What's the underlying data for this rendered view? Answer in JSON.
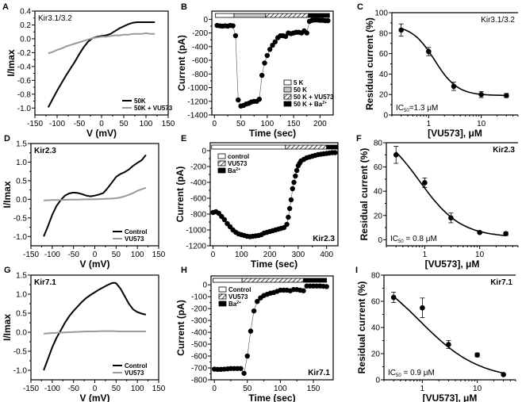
{
  "chart_data": [
    {
      "id": "A",
      "type": "line",
      "panel_label": "A",
      "title": "",
      "annotation": "Kir3.1/3.2",
      "annotation_bold": false,
      "xlabel": "V (mV)",
      "ylabel": "I/Imax",
      "xlim": [
        -150,
        150
      ],
      "ylim": [
        -1.1,
        0.4
      ],
      "xticks": [
        -150,
        -100,
        -50,
        0,
        50,
        100,
        150
      ],
      "yticks": [
        -1.0,
        -0.8,
        -0.6,
        -0.4,
        -0.2,
        0.0,
        0.2,
        0.4
      ],
      "ytick_labels": [
        "-1.0",
        "-0.8",
        "-0.6",
        "-0.4",
        "-0.2",
        "0.0",
        "0.2",
        "0.4"
      ],
      "legend": "bottom-right",
      "series": [
        {
          "name": "50K",
          "color": "#000000",
          "x": [
            -120,
            -110,
            -100,
            -90,
            -80,
            -70,
            -60,
            -50,
            -40,
            -30,
            -20,
            -10,
            0,
            10,
            20,
            30,
            40,
            50,
            60,
            70,
            80,
            90,
            100,
            110,
            120
          ],
          "y": [
            -0.99,
            -0.87,
            -0.75,
            -0.64,
            -0.53,
            -0.43,
            -0.33,
            -0.22,
            -0.12,
            -0.04,
            0.01,
            0.03,
            0.04,
            0.05,
            0.07,
            0.11,
            0.15,
            0.18,
            0.21,
            0.23,
            0.24,
            0.24,
            0.24,
            0.24,
            0.24
          ]
        },
        {
          "name": "50K + VU573",
          "color": "#999999",
          "x": [
            -120,
            -110,
            -100,
            -90,
            -80,
            -70,
            -60,
            -50,
            -40,
            -30,
            -20,
            -10,
            0,
            10,
            20,
            30,
            40,
            50,
            60,
            70,
            80,
            90,
            100,
            110,
            120
          ],
          "y": [
            -0.21,
            -0.19,
            -0.16,
            -0.14,
            -0.11,
            -0.09,
            -0.07,
            -0.05,
            -0.03,
            -0.01,
            0.01,
            0.02,
            0.03,
            0.03,
            0.04,
            0.05,
            0.05,
            0.06,
            0.06,
            0.07,
            0.07,
            0.07,
            0.08,
            0.07,
            0.07
          ]
        }
      ]
    },
    {
      "id": "B",
      "type": "scatter",
      "panel_label": "B",
      "title": "",
      "annotation": "",
      "xlabel": "Time (sec)",
      "ylabel": "Current (pA)",
      "xlim": [
        -5,
        225
      ],
      "ylim": [
        -1400,
        120
      ],
      "xticks": [
        0,
        50,
        100,
        150,
        200
      ],
      "yticks": [
        -1400,
        -1200,
        -1000,
        -800,
        -600,
        -400,
        -200,
        0
      ],
      "ytick_labels": [
        "-1400",
        "-1200",
        "-1000",
        "-800",
        "-600",
        "-400",
        "-200",
        "0"
      ],
      "connected": true,
      "bars": [
        {
          "label": "5 K",
          "fill": "white",
          "start": 2,
          "end": 37
        },
        {
          "label": "50 K",
          "fill": "gray",
          "start": 37,
          "end": 97
        },
        {
          "label": "50 K + VU573",
          "fill": "hatch",
          "start": 97,
          "end": 178
        },
        {
          "label": "50 K + Ba2+",
          "fill": "black",
          "start": 178,
          "end": 218
        }
      ],
      "bar_legend": "bottom-right",
      "series": [
        {
          "name": "current",
          "color": "#000000",
          "x": [
            5,
            10,
            15,
            20,
            25,
            30,
            35,
            40,
            45,
            50,
            55,
            60,
            65,
            70,
            75,
            80,
            85,
            90,
            95,
            100,
            105,
            110,
            115,
            120,
            125,
            130,
            135,
            140,
            145,
            150,
            155,
            160,
            165,
            170,
            175,
            180,
            185,
            190,
            195,
            200,
            205,
            210,
            215
          ],
          "y": [
            -90,
            -95,
            -100,
            -95,
            -100,
            -90,
            -95,
            -240,
            -1180,
            -1270,
            -1260,
            -1240,
            -1230,
            -1210,
            -1200,
            -1200,
            -1170,
            -820,
            -640,
            -530,
            -440,
            -380,
            -330,
            -270,
            -240,
            -240,
            -250,
            -200,
            -210,
            -200,
            -190,
            -190,
            -200,
            -170,
            -200,
            -30,
            -15,
            -10,
            -10,
            -15,
            -15,
            -20,
            -20
          ]
        }
      ]
    },
    {
      "id": "C",
      "type": "scatter",
      "panel_label": "C",
      "title": "",
      "annotation": "Kir3.1/3.2",
      "annotation_bold": false,
      "ic50_text": "IC50=1.3 μM",
      "xlabel": "[VU573], μM",
      "ylabel": "Residual current (%)",
      "xscale": "log",
      "xlim": [
        0.2,
        50
      ],
      "ylim": [
        0,
        100
      ],
      "xticks": [
        1,
        10
      ],
      "xtick_labels": [
        "1",
        "10"
      ],
      "yticks": [
        0,
        20,
        40,
        60,
        80,
        100
      ],
      "ytick_labels": [
        "0",
        "20",
        "40",
        "60",
        "80",
        "100"
      ],
      "fit": {
        "top": 88,
        "bottom": 19,
        "ic50": 1.3,
        "hill": 2.0,
        "xrange": [
          0.3,
          30
        ]
      },
      "series": [
        {
          "name": "data",
          "color": "#000000",
          "x": [
            0.3,
            1,
            3,
            10,
            30
          ],
          "y": [
            83,
            62,
            28,
            20,
            19
          ],
          "err": [
            6,
            4,
            4,
            3,
            2
          ]
        }
      ]
    },
    {
      "id": "D",
      "type": "line",
      "panel_label": "D",
      "title": "",
      "annotation": "Kir2.3",
      "annotation_bold": true,
      "xlabel": "V (mV)",
      "ylabel": "I/Imax",
      "xlim": [
        -150,
        150
      ],
      "ylim": [
        -1.25,
        1.5
      ],
      "xticks": [
        -150,
        -100,
        -50,
        0,
        50,
        100,
        150
      ],
      "yticks": [
        -1.0,
        -0.5,
        0.0,
        0.5,
        1.0,
        1.5
      ],
      "ytick_labels": [
        "-1.0",
        "-0.5",
        "0.0",
        "0.5",
        "1.0",
        "1.5"
      ],
      "legend": "bottom-right",
      "series": [
        {
          "name": "Control",
          "color": "#000000",
          "x": [
            -120,
            -110,
            -100,
            -90,
            -80,
            -70,
            -60,
            -50,
            -40,
            -30,
            -20,
            -10,
            0,
            10,
            20,
            30,
            40,
            50,
            60,
            70,
            80,
            90,
            100,
            110,
            120
          ],
          "y": [
            -1.0,
            -0.72,
            -0.42,
            -0.18,
            -0.02,
            0.1,
            0.16,
            0.18,
            0.17,
            0.14,
            0.1,
            0.08,
            0.1,
            0.13,
            0.17,
            0.3,
            0.45,
            0.6,
            0.68,
            0.73,
            0.8,
            0.9,
            0.98,
            1.05,
            1.19
          ]
        },
        {
          "name": "VU573",
          "color": "#999999",
          "x": [
            -120,
            -100,
            -80,
            -60,
            -40,
            -20,
            0,
            20,
            40,
            50,
            60,
            70,
            80,
            90,
            100,
            110,
            120
          ],
          "y": [
            -0.03,
            -0.02,
            -0.02,
            -0.01,
            -0.01,
            0.0,
            0.0,
            0.01,
            0.02,
            0.03,
            0.05,
            0.08,
            0.12,
            0.17,
            0.23,
            0.27,
            0.31
          ]
        }
      ]
    },
    {
      "id": "E",
      "type": "scatter",
      "panel_label": "E",
      "title": "",
      "annotation": "Kir2.3",
      "annotation_bold": true,
      "xlabel": "Time (sec)",
      "ylabel": "Current (pA)",
      "xlim": [
        -10,
        440
      ],
      "ylim": [
        -1200,
        100
      ],
      "xticks": [
        0,
        100,
        200,
        300,
        400
      ],
      "yticks": [
        -1200,
        -1000,
        -800,
        -600,
        -400,
        -200,
        0
      ],
      "ytick_labels": [
        "-1200",
        "-1000",
        "-800",
        "-600",
        "-400",
        "-200",
        "0"
      ],
      "connected": true,
      "bars": [
        {
          "label": "control",
          "fill": "white",
          "start": -5,
          "end": 255
        },
        {
          "label": "VU573",
          "fill": "hatch",
          "start": 255,
          "end": 400
        },
        {
          "label": "Ba2+",
          "fill": "black",
          "start": 400,
          "end": 438
        }
      ],
      "bar_legend": "top-left",
      "series": [
        {
          "name": "current",
          "color": "#000000",
          "x": [
            0,
            10,
            20,
            30,
            40,
            50,
            60,
            70,
            80,
            90,
            100,
            110,
            120,
            130,
            140,
            150,
            160,
            170,
            180,
            190,
            200,
            210,
            220,
            230,
            240,
            250,
            260,
            265,
            270,
            275,
            280,
            285,
            290,
            295,
            300,
            305,
            310,
            320,
            330,
            340,
            350,
            360,
            370,
            380,
            390,
            400,
            410,
            420,
            430
          ],
          "y": [
            -780,
            -770,
            -790,
            -830,
            -870,
            -920,
            -960,
            -1000,
            -1030,
            -1050,
            -1060,
            -1070,
            -1080,
            -1085,
            -1080,
            -1075,
            -1070,
            -1060,
            -1040,
            -1030,
            -1020,
            -1010,
            -1000,
            -990,
            -980,
            -970,
            -930,
            -840,
            -730,
            -620,
            -480,
            -400,
            -320,
            -250,
            -190,
            -160,
            -130,
            -110,
            -90,
            -80,
            -70,
            -60,
            -50,
            -45,
            -40,
            -35,
            -30,
            -25,
            -25
          ]
        }
      ]
    },
    {
      "id": "F",
      "type": "scatter",
      "panel_label": "F",
      "title": "",
      "annotation": "Kir2.3",
      "annotation_bold": true,
      "ic50_text": "IC50 = 0.8 μM",
      "xlabel": "[VU573], μM",
      "ylabel": "Residual current (%)",
      "xscale": "log",
      "xlim": [
        0.2,
        50
      ],
      "ylim": [
        -5,
        80
      ],
      "xticks": [
        1,
        10
      ],
      "xtick_labels": [
        "1",
        "10"
      ],
      "yticks": [
        0,
        20,
        40,
        60,
        80
      ],
      "ytick_labels": [
        "0",
        "20",
        "40",
        "60",
        "80"
      ],
      "fit": {
        "top": 95,
        "bottom": 2,
        "ic50": 0.8,
        "hill": 1.15,
        "xrange": [
          0.3,
          30
        ]
      },
      "series": [
        {
          "name": "data",
          "color": "#000000",
          "x": [
            0.3,
            1,
            3,
            10,
            30
          ],
          "y": [
            70,
            47,
            18,
            6,
            5
          ],
          "err": [
            7,
            4,
            4,
            1,
            1.5
          ]
        }
      ]
    },
    {
      "id": "G",
      "type": "line",
      "panel_label": "G",
      "title": "",
      "annotation": "Kir7.1",
      "annotation_bold": true,
      "xlabel": "V (mV)",
      "ylabel": "I/Imax",
      "xlim": [
        -150,
        150
      ],
      "ylim": [
        -1.25,
        1.5
      ],
      "xticks": [
        -150,
        -100,
        -50,
        0,
        50,
        100,
        150
      ],
      "yticks": [
        -1.0,
        -0.5,
        0.0,
        0.5,
        1.0,
        1.5
      ],
      "ytick_labels": [
        "-1.0",
        "-0.5",
        "0.0",
        "0.5",
        "1.0",
        "1.5"
      ],
      "legend": "bottom-right",
      "series": [
        {
          "name": "Control",
          "color": "#000000",
          "x": [
            -120,
            -110,
            -100,
            -90,
            -80,
            -70,
            -60,
            -50,
            -40,
            -30,
            -20,
            -10,
            0,
            10,
            20,
            30,
            40,
            45,
            50,
            60,
            70,
            80,
            90,
            100,
            110,
            120
          ],
          "y": [
            -1.0,
            -0.7,
            -0.4,
            -0.15,
            0.05,
            0.25,
            0.42,
            0.56,
            0.68,
            0.8,
            0.9,
            0.98,
            1.05,
            1.12,
            1.18,
            1.24,
            1.29,
            1.3,
            1.29,
            1.15,
            0.95,
            0.75,
            0.6,
            0.53,
            0.49,
            0.46
          ]
        },
        {
          "name": "VU573",
          "color": "#999999",
          "x": [
            -120,
            -100,
            -80,
            -60,
            -40,
            -20,
            0,
            20,
            40,
            60,
            80,
            100,
            120
          ],
          "y": [
            -0.04,
            -0.02,
            -0.01,
            0.0,
            0.01,
            0.02,
            0.02,
            0.03,
            0.03,
            0.02,
            0.02,
            0.02,
            0.02
          ]
        }
      ]
    },
    {
      "id": "H",
      "type": "scatter",
      "panel_label": "H",
      "title": "",
      "annotation": "Kir7.1",
      "annotation_bold": true,
      "xlabel": "Time (sec)",
      "ylabel": "Current (pA)",
      "xlim": [
        -5,
        180
      ],
      "ylim": [
        -800,
        75
      ],
      "xticks": [
        0,
        50,
        100,
        150
      ],
      "yticks": [
        -800,
        -700,
        -600,
        -500,
        -400,
        -300,
        -200,
        -100,
        0
      ],
      "ytick_labels": [
        "-800",
        "-700",
        "-600",
        "-500",
        "-400",
        "-300",
        "-200",
        "-100",
        "0"
      ],
      "connected": true,
      "bars": [
        {
          "label": "Control",
          "fill": "white",
          "start": -2,
          "end": 42
        },
        {
          "label": "VU573",
          "fill": "hatch",
          "start": 42,
          "end": 135
        },
        {
          "label": "Ba2+",
          "fill": "black",
          "start": 135,
          "end": 170
        }
      ],
      "bar_legend": "top-left",
      "series": [
        {
          "name": "current",
          "color": "#000000",
          "x": [
            0,
            5,
            10,
            15,
            20,
            25,
            30,
            35,
            40,
            45,
            50,
            55,
            60,
            65,
            70,
            75,
            80,
            85,
            90,
            95,
            100,
            105,
            110,
            115,
            120,
            125,
            130,
            135,
            140,
            145,
            150,
            155,
            160,
            165,
            170
          ],
          "y": [
            -710,
            -712,
            -712,
            -710,
            -708,
            -705,
            -705,
            -705,
            -705,
            -745,
            -600,
            -390,
            -220,
            -140,
            -110,
            -90,
            -80,
            -70,
            -65,
            -55,
            -45,
            -45,
            -45,
            -50,
            -40,
            -40,
            -45,
            -50,
            -10,
            -10,
            -10,
            -10,
            -10,
            -12,
            -15
          ]
        }
      ]
    },
    {
      "id": "I",
      "type": "scatter",
      "panel_label": "I",
      "title": "",
      "annotation": "Kir7.1",
      "annotation_bold": true,
      "ic50_text": "IC50 = 0.9 μM",
      "xlabel": "[VU573], μM",
      "ylabel": "Residual current (%)",
      "xscale": "log",
      "xlim": [
        0.2,
        50
      ],
      "ylim": [
        0,
        80
      ],
      "xticks": [
        1,
        10
      ],
      "xtick_labels": [
        "1",
        "10"
      ],
      "yticks": [
        0,
        20,
        40,
        60,
        80
      ],
      "ytick_labels": [
        "0",
        "20",
        "40",
        "60",
        "80"
      ],
      "fit": {
        "top": 90,
        "bottom": 0,
        "ic50": 0.9,
        "hill": 0.8,
        "xrange": [
          0.3,
          30
        ]
      },
      "series": [
        {
          "name": "data",
          "color": "#000000",
          "x": [
            0.3,
            1,
            3,
            10,
            30
          ],
          "y": [
            63,
            55,
            27,
            19,
            4
          ],
          "err": [
            4,
            7.5,
            3,
            1.5,
            1
          ]
        }
      ]
    }
  ]
}
